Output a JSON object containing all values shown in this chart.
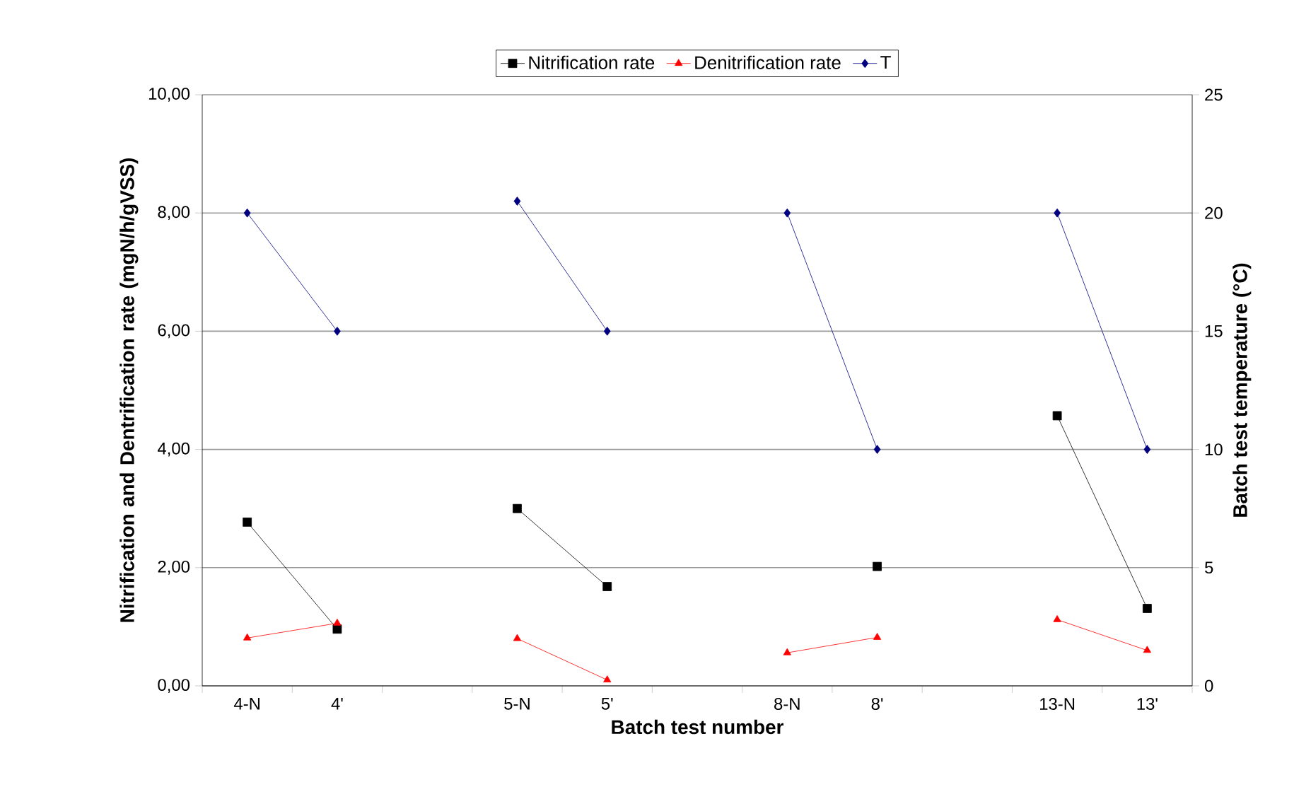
{
  "chart_data": {
    "type": "line",
    "categories": [
      "4-N",
      "4'",
      null,
      "5-N",
      "5'",
      null,
      "8-N",
      "8'",
      null,
      "13-N",
      "13'"
    ],
    "series": [
      {
        "name": "Nitrification rate",
        "color": "#000000",
        "marker": "square",
        "values": [
          2.77,
          0.96,
          null,
          3.0,
          1.68,
          null,
          null,
          2.02,
          null,
          4.57,
          1.31
        ]
      },
      {
        "name": "Denitrification rate",
        "color": "#ff0000",
        "marker": "triangle",
        "values": [
          0.81,
          1.06,
          null,
          0.8,
          0.1,
          null,
          0.56,
          0.82,
          null,
          1.12,
          0.6
        ]
      },
      {
        "name": "T",
        "color": "#000080",
        "marker": "diamond",
        "axis": "y2",
        "values": [
          20,
          15,
          null,
          20.5,
          15,
          null,
          20,
          10,
          null,
          20,
          10
        ]
      }
    ],
    "xlabel": "Batch test number",
    "ylabel": "Nitrification and Dentrification rate (mgN/h/gVSS)",
    "y2label": "Batch test temperature (°C)",
    "ylim": [
      0,
      10
    ],
    "yticks": [
      {
        "value": 0,
        "label": "0,00"
      },
      {
        "value": 2,
        "label": "2,00"
      },
      {
        "value": 4,
        "label": "4,00"
      },
      {
        "value": 6,
        "label": "6,00"
      },
      {
        "value": 8,
        "label": "8,00"
      },
      {
        "value": 10,
        "label": "10,00"
      }
    ],
    "y2lim": [
      0,
      25
    ],
    "y2ticks": [
      0,
      5,
      10,
      15,
      20,
      25
    ],
    "grid": "y",
    "legend": "top"
  }
}
